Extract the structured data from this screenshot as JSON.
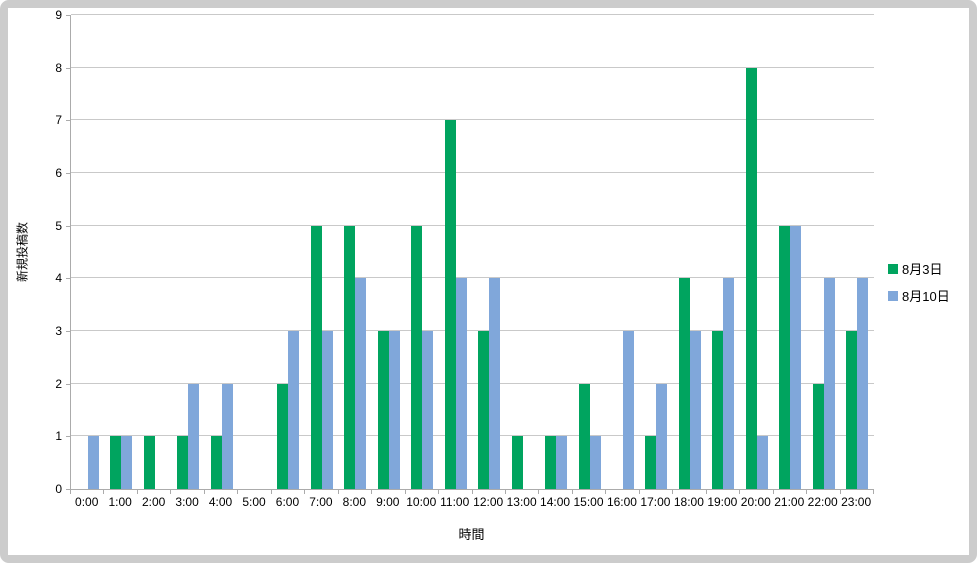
{
  "chart_data": {
    "type": "bar",
    "title": "",
    "xlabel": "時間",
    "ylabel": "新規投稿数",
    "ylim": [
      0,
      9
    ],
    "ytick_step": 1,
    "grid": true,
    "legend_position": "right",
    "categories": [
      "0:00",
      "1:00",
      "2:00",
      "3:00",
      "4:00",
      "5:00",
      "6:00",
      "7:00",
      "8:00",
      "9:00",
      "10:00",
      "11:00",
      "12:00",
      "13:00",
      "14:00",
      "15:00",
      "16:00",
      "17:00",
      "18:00",
      "19:00",
      "20:00",
      "21:00",
      "22:00",
      "23:00"
    ],
    "series": [
      {
        "name": "8月3日",
        "color": "#00A45F",
        "values": [
          0,
          1,
          1,
          1,
          1,
          0,
          2,
          5,
          5,
          3,
          5,
          7,
          3,
          1,
          1,
          2,
          0,
          1,
          4,
          3,
          8,
          5,
          2,
          3
        ]
      },
      {
        "name": "8月10日",
        "color": "#80A7DA",
        "values": [
          1,
          1,
          0,
          2,
          2,
          0,
          3,
          3,
          4,
          3,
          3,
          4,
          4,
          0,
          1,
          1,
          3,
          2,
          3,
          4,
          1,
          5,
          4,
          4
        ]
      }
    ],
    "colors": {
      "gridline": "#c9c9c9",
      "axis_line": "#ababab",
      "frame_border": "#cccccc",
      "text": "#000000"
    }
  }
}
